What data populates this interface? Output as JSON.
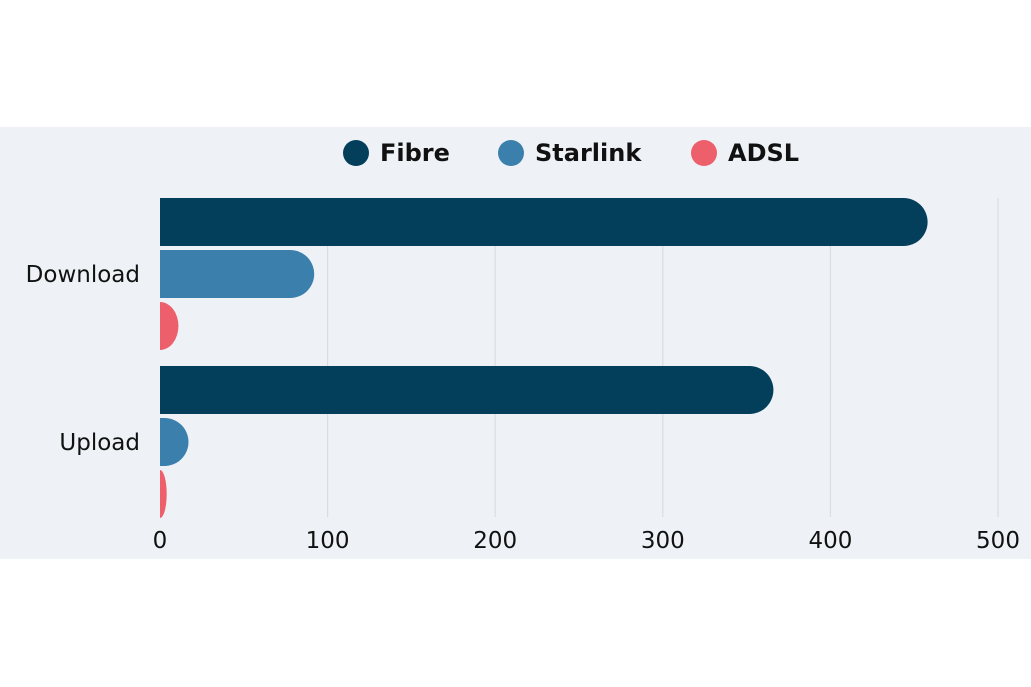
{
  "chart_data": {
    "type": "bar",
    "orientation": "horizontal",
    "categories": [
      "Download",
      "Upload"
    ],
    "series": [
      {
        "name": "Fibre",
        "color": "#033f5a",
        "values": [
          458,
          366
        ]
      },
      {
        "name": "Starlink",
        "color": "#3b7fac",
        "values": [
          92,
          17
        ]
      },
      {
        "name": "ADSL",
        "color": "#ee5f6c",
        "values": [
          11,
          4
        ]
      }
    ],
    "xlim": [
      0,
      500
    ],
    "xticks": [
      0,
      100,
      200,
      300,
      400,
      500
    ],
    "grid": true,
    "legend_position": "top-center",
    "background": "#eef2f6"
  }
}
